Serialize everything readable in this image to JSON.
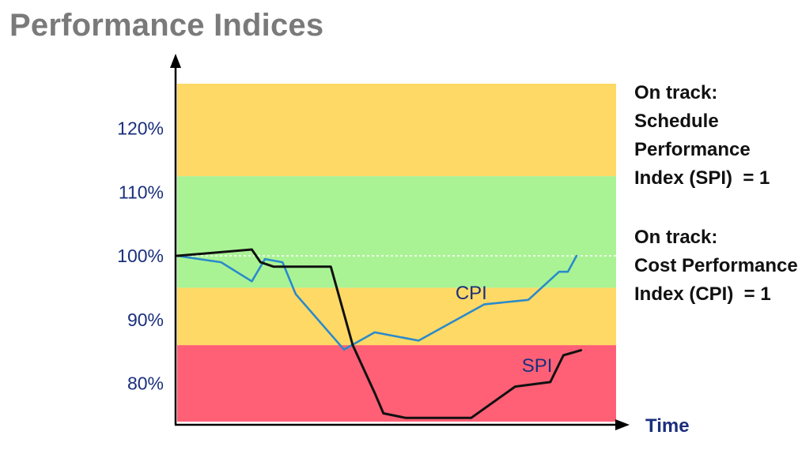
{
  "page": {
    "title": "Performance Indices"
  },
  "notes": {
    "spi_note": "On track:\nSchedule\nPerformance\nIndex (SPI)  = 1",
    "cpi_note": "On track:\nCost Performance\nIndex (CPI)  = 1"
  },
  "chart_data": {
    "type": "line",
    "title": "Performance Indices",
    "xlabel": "Time",
    "ylabel": "",
    "ylim": [
      74,
      127
    ],
    "yticks": [
      80,
      90,
      100,
      110,
      120
    ],
    "ytick_labels": [
      "80%",
      "90%",
      "100%",
      "110%",
      "120%"
    ],
    "reference_line": 100,
    "bands": [
      {
        "from": 74,
        "to": 86,
        "color": "#ff6075"
      },
      {
        "from": 86,
        "to": 95,
        "color": "#ffd965"
      },
      {
        "from": 95,
        "to": 112.5,
        "color": "#aaf395"
      },
      {
        "from": 112.5,
        "to": 127,
        "color": "#ffd965"
      }
    ],
    "series": [
      {
        "name": "CPI",
        "color": "#2b8acb",
        "points": [
          [
            0,
            100
          ],
          [
            10,
            99
          ],
          [
            17,
            96
          ],
          [
            20,
            99.5
          ],
          [
            24,
            99
          ],
          [
            27,
            94
          ],
          [
            38,
            85.3
          ],
          [
            45,
            88
          ],
          [
            55,
            86.7
          ],
          [
            70,
            92.4
          ],
          [
            80,
            93.1
          ],
          [
            87,
            97.5
          ],
          [
            89,
            97.5
          ],
          [
            91,
            100
          ]
        ]
      },
      {
        "name": "SPI",
        "color": "#111111",
        "points": [
          [
            0,
            100
          ],
          [
            17,
            101
          ],
          [
            19,
            99
          ],
          [
            22,
            98.3
          ],
          [
            35,
            98.3
          ],
          [
            40,
            86
          ],
          [
            45,
            78.5
          ],
          [
            47,
            75.3
          ],
          [
            52,
            74.6
          ],
          [
            67,
            74.6
          ],
          [
            77,
            79.5
          ],
          [
            85,
            80.2
          ],
          [
            88,
            84.4
          ],
          [
            92,
            85.2
          ]
        ]
      }
    ]
  }
}
